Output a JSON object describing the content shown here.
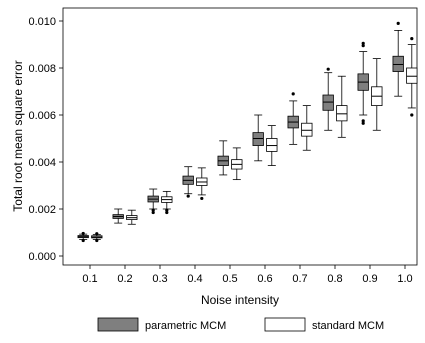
{
  "chart_data": {
    "type": "box",
    "title": "",
    "xlabel": "Noise intensity",
    "ylabel": "Total root mean square error",
    "ylim": [
      0,
      0.0105
    ],
    "y_ticks": [
      "0.000",
      "0.002",
      "0.004",
      "0.006",
      "0.008",
      "0.010"
    ],
    "y_tick_values": [
      0,
      0.002,
      0.004,
      0.006,
      0.008,
      0.01
    ],
    "categories": [
      "0.1",
      "0.2",
      "0.3",
      "0.4",
      "0.5",
      "0.6",
      "0.7",
      "0.8",
      "0.9",
      "1.0"
    ],
    "grid": false,
    "legend_position": "bottom",
    "series": [
      {
        "name": "parametric MCM",
        "color": "#7f7f7f",
        "boxes": [
          {
            "whislo": 0.0007,
            "q1": 0.00078,
            "med": 0.00082,
            "q3": 0.00087,
            "whishi": 0.00093,
            "fliers": [
              0.00066,
              0.00096
            ]
          },
          {
            "whislo": 0.0014,
            "q1": 0.0016,
            "med": 0.00168,
            "q3": 0.00176,
            "whishi": 0.002,
            "fliers": []
          },
          {
            "whislo": 0.002,
            "q1": 0.0023,
            "med": 0.00242,
            "q3": 0.00255,
            "whishi": 0.00285,
            "fliers": [
              0.00185,
              0.00195
            ]
          },
          {
            "whislo": 0.00265,
            "q1": 0.00305,
            "med": 0.00322,
            "q3": 0.0034,
            "whishi": 0.0038,
            "fliers": [
              0.00255
            ]
          },
          {
            "whislo": 0.00345,
            "q1": 0.00385,
            "med": 0.00405,
            "q3": 0.00425,
            "whishi": 0.0049,
            "fliers": []
          },
          {
            "whislo": 0.00405,
            "q1": 0.0047,
            "med": 0.005,
            "q3": 0.00525,
            "whishi": 0.006,
            "fliers": []
          },
          {
            "whislo": 0.00475,
            "q1": 0.00545,
            "med": 0.0057,
            "q3": 0.00595,
            "whishi": 0.0066,
            "fliers": [
              0.0069
            ]
          },
          {
            "whislo": 0.00535,
            "q1": 0.0062,
            "med": 0.00655,
            "q3": 0.00685,
            "whishi": 0.0078,
            "fliers": [
              0.00795
            ]
          },
          {
            "whislo": 0.006,
            "q1": 0.00705,
            "med": 0.0074,
            "q3": 0.00775,
            "whishi": 0.0087,
            "fliers": [
              0.00575,
              0.00565,
              0.00895,
              0.00905
            ]
          },
          {
            "whislo": 0.0068,
            "q1": 0.00785,
            "med": 0.00815,
            "q3": 0.0085,
            "whishi": 0.0096,
            "fliers": [
              0.0099
            ]
          }
        ]
      },
      {
        "name": "standard MCM",
        "color": "#ffffff",
        "boxes": [
          {
            "whislo": 0.0007,
            "q1": 0.00077,
            "med": 0.00081,
            "q3": 0.00086,
            "whishi": 0.00092,
            "fliers": [
              0.00066,
              0.00095
            ]
          },
          {
            "whislo": 0.00135,
            "q1": 0.00155,
            "med": 0.00163,
            "q3": 0.00172,
            "whishi": 0.00195,
            "fliers": []
          },
          {
            "whislo": 0.002,
            "q1": 0.00228,
            "med": 0.0024,
            "q3": 0.00252,
            "whishi": 0.00275,
            "fliers": [
              0.00185,
              0.00195
            ]
          },
          {
            "whislo": 0.0026,
            "q1": 0.003,
            "med": 0.00315,
            "q3": 0.00332,
            "whishi": 0.00375,
            "fliers": [
              0.00245
            ]
          },
          {
            "whislo": 0.00325,
            "q1": 0.0037,
            "med": 0.0039,
            "q3": 0.0041,
            "whishi": 0.0046,
            "fliers": []
          },
          {
            "whislo": 0.00385,
            "q1": 0.00445,
            "med": 0.0047,
            "q3": 0.005,
            "whishi": 0.00555,
            "fliers": []
          },
          {
            "whislo": 0.0045,
            "q1": 0.0051,
            "med": 0.00535,
            "q3": 0.00565,
            "whishi": 0.0064,
            "fliers": []
          },
          {
            "whislo": 0.00505,
            "q1": 0.00575,
            "med": 0.00605,
            "q3": 0.0064,
            "whishi": 0.00765,
            "fliers": []
          },
          {
            "whislo": 0.00535,
            "q1": 0.0064,
            "med": 0.0068,
            "q3": 0.0072,
            "whishi": 0.0084,
            "fliers": []
          },
          {
            "whislo": 0.0063,
            "q1": 0.00735,
            "med": 0.00765,
            "q3": 0.008,
            "whishi": 0.009,
            "fliers": [
              0.006,
              0.00925
            ]
          }
        ]
      }
    ]
  }
}
